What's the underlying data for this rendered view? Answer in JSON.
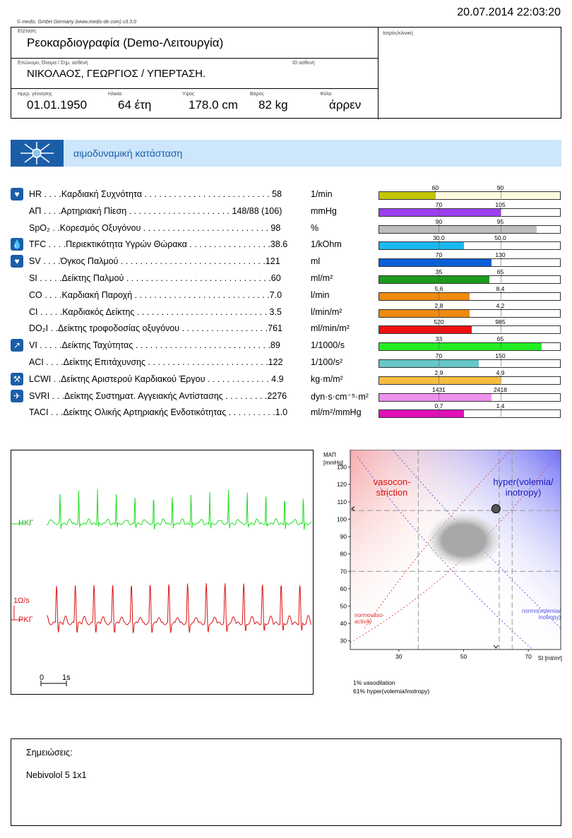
{
  "header": {
    "datetime": "20.07.2014  22:03:20",
    "copyright": "© medis. GmbH Germany (www.medis-de.com) v3.3.0",
    "exam_label": "Εξέταση",
    "exam_value": "Ρεοκαρδιογραφία (Demo-Λειτουργία)",
    "doctor_label": "Ιατρός/κλινική",
    "name_label": "Επώνυμο, Όνομα / Σημ. ασθενή",
    "name_value": "ΝΙΚΟΛΑΟΣ, ΓΕΩΡΓΙΟΣ / ΥΠΕΡΤΑΣΗ.",
    "id_label": "ID ασθενή",
    "dob_label": "Ημερ. γέννησης",
    "dob_value": "01.01.1950",
    "age_label": "Ηλικία",
    "age_value": "64 έτη",
    "height_label": "Ύψος",
    "height_value": "178.0 cm",
    "weight_label": "Βάρος",
    "weight_value": "82 kg",
    "sex_label": "Φύλο",
    "sex_value": "άρρεν"
  },
  "section": {
    "title": "αιμοδυναμική κατάσταση"
  },
  "params": [
    {
      "icon": "heart-pulse-icon",
      "glyph": "♥",
      "text": "HR . . . .Καρδιακή Συχνότητα . . . . . . . . . . . . . . . . . . . . . . . . . . 58",
      "unit": "1/min",
      "lo": "60",
      "hi": "90",
      "fill": 0.31,
      "color": "#c3c300",
      "bg": "#fffbe0",
      "lo_pos": 0.31,
      "hi_pos": 0.67
    },
    {
      "icon": "",
      "glyph": "",
      "text": "ΑΠ . . . .Αρτηριακή Πίεση . . . . . . . . . . . . . . . . . . . . . 148/88 (106)",
      "unit": "mmHg",
      "lo": "70",
      "hi": "105",
      "fill": 0.67,
      "color": "#9b3ff0",
      "bg": "#fff",
      "lo_pos": 0.33,
      "hi_pos": 0.67
    },
    {
      "icon": "",
      "glyph": "",
      "text": "SpO₂ . .Κορεσμός Οξυγόνου . . . . . . . . . . . . . . . . . . . . . . . . . . 98",
      "unit": "%",
      "lo": "90",
      "hi": "95",
      "fill": 0.87,
      "color": "#bdbdbd",
      "bg": "#fff",
      "lo_pos": 0.33,
      "hi_pos": 0.67
    },
    {
      "icon": "drop-icon",
      "glyph": "💧",
      "text": "TFC . . . .Περιεκτικότητα Υγρών Θώρακα . . . . . . . . . . . . . . . . .38.6",
      "unit": "1/kOhm",
      "lo": "30.0",
      "hi": "50.0",
      "fill": 0.47,
      "color": "#1ab8f0",
      "bg": "#fff",
      "lo_pos": 0.33,
      "hi_pos": 0.67
    },
    {
      "icon": "heart-icon",
      "glyph": "♥",
      "text": "SV . . . .Όγκος Παλμού . . . . . . . . . . . . . . . . . . . . . . . . . . . . . .121",
      "unit": "ml",
      "lo": "70",
      "hi": "130",
      "fill": 0.62,
      "color": "#0a5fd8",
      "bg": "#fff",
      "lo_pos": 0.33,
      "hi_pos": 0.67
    },
    {
      "icon": "",
      "glyph": "",
      "text": "SI . . . . .Δείκτης Παλμού . . . . . . . . . . . . . . . . . . . . . . . . . . . . . .60",
      "unit": "ml/m²",
      "lo": "35",
      "hi": "65",
      "fill": 0.61,
      "color": "#1b9a1b",
      "bg": "#fff",
      "lo_pos": 0.33,
      "hi_pos": 0.67
    },
    {
      "icon": "",
      "glyph": "",
      "text": "CO . . . .Καρδιακή Παροχή . . . . . . . . . . . . . . . . . . . . . . . . . . . .7.0",
      "unit": "l/min",
      "lo": "5.6",
      "hi": "8.4",
      "fill": 0.5,
      "color": "#f08a10",
      "bg": "#fff",
      "lo_pos": 0.33,
      "hi_pos": 0.67
    },
    {
      "icon": "",
      "glyph": "",
      "text": "CI . . . . .Καρδιακός Δείκτης . . . . . . . . . . . . . . . . . . . . . . . . . . . 3.5",
      "unit": "l/min/m²",
      "lo": "2.8",
      "hi": "4.2",
      "fill": 0.5,
      "color": "#f08a10",
      "bg": "#fff",
      "lo_pos": 0.33,
      "hi_pos": 0.67
    },
    {
      "icon": "",
      "glyph": "",
      "text": "DO₂I . .Δείκτης τροφοδοσίας οξυγόνου . . . . . . . . . . . . . . . . . .761",
      "unit": "ml/min/m²",
      "lo": "520",
      "hi": "985",
      "fill": 0.51,
      "color": "#ee1111",
      "bg": "#fff",
      "lo_pos": 0.33,
      "hi_pos": 0.67
    },
    {
      "icon": "arrow-up-right-icon",
      "glyph": "↗",
      "text": "VI . . . . .Δείκτης Ταχύτητας . . . . . . . . . . . . . . . . . . . . . . . . . . . .89",
      "unit": "1/1000/s",
      "lo": "33",
      "hi": "65",
      "fill": 0.9,
      "color": "#22ee22",
      "bg": "#fff",
      "lo_pos": 0.33,
      "hi_pos": 0.67
    },
    {
      "icon": "",
      "glyph": "",
      "text": "ACI . . . .Δείκτης Επιτάχυνσης . . . . . . . . . . . . . . . . . . . . . . . . .122",
      "unit": "1/100/s²",
      "lo": "70",
      "hi": "150",
      "fill": 0.55,
      "color": "#66c7c9",
      "bg": "#fff",
      "lo_pos": 0.33,
      "hi_pos": 0.67
    },
    {
      "icon": "work-icon",
      "glyph": "⚒",
      "text": "LCWI . .Δείκτης Αριστερού Καρδιακού Έργου . . . . . . . . . . . . . 4.9",
      "unit": "kg·m/m²",
      "lo": "2.9",
      "hi": "4.9",
      "fill": 0.67,
      "color": "#f5bd40",
      "bg": "#fff",
      "lo_pos": 0.33,
      "hi_pos": 0.67
    },
    {
      "icon": "vessel-icon",
      "glyph": "✈",
      "text": "SVRI . . .Δείκτης Συστηματ. Αγγειακής Αντίστασης . . . . . . . . .2276",
      "unit": "dyn·s·cm⁻⁵·m²",
      "lo": "1431",
      "hi": "2418",
      "fill": 0.62,
      "color": "#ee90ee",
      "bg": "#fff",
      "lo_pos": 0.33,
      "hi_pos": 0.67
    },
    {
      "icon": "",
      "glyph": "",
      "text": "TACI . . .Δείκτης Ολικής Αρτηριακής Ενδοτικότητας . . . . . . . . . .1.0",
      "unit": "ml/m²/mmHg",
      "lo": "0.7",
      "hi": "1.4",
      "fill": 0.47,
      "color": "#e010b8",
      "bg": "#fff",
      "lo_pos": 0.33,
      "hi_pos": 0.67
    }
  ],
  "waves": {
    "ecg_label": "ΗΚΓ",
    "icg_label": "ΡΚΓ",
    "icg_scale": "1Ω/s",
    "time_zero": "0",
    "time_unit": "1s",
    "ecg_color": "#22dd22",
    "icg_color": "#dd1111"
  },
  "chart_data": {
    "type": "scatter",
    "ylabel": "ΜΑΠ [mmHg]",
    "xlabel": "SI [ml/m²]",
    "y_ticks": [
      30,
      40,
      50,
      60,
      70,
      80,
      90,
      100,
      110,
      120,
      130
    ],
    "x_ticks": [
      30,
      50,
      70
    ],
    "xlim": [
      15,
      80
    ],
    "ylim": [
      25,
      140
    ],
    "point": {
      "x": 60,
      "y": 106
    },
    "normal_ellipse": {
      "cx": 50,
      "cy": 88,
      "rx": 11,
      "ry": 15
    },
    "guide_x": [
      36,
      61,
      65
    ],
    "guide_y": [
      70,
      105
    ],
    "regions": {
      "top_left": "vasocon-\nstriction",
      "top_right": "hyper(volemia/\ninotropy)",
      "bottom_left": "normovaso-\nactivity",
      "bottom_right": "normo(volemia/\ninotropy)"
    },
    "notes": [
      "1% vasodilation",
      "61% hyper(volemia/inotropy)"
    ]
  },
  "notes": {
    "title": "Σημειώσεις:",
    "text": "Nebivolol 5 1x1"
  }
}
